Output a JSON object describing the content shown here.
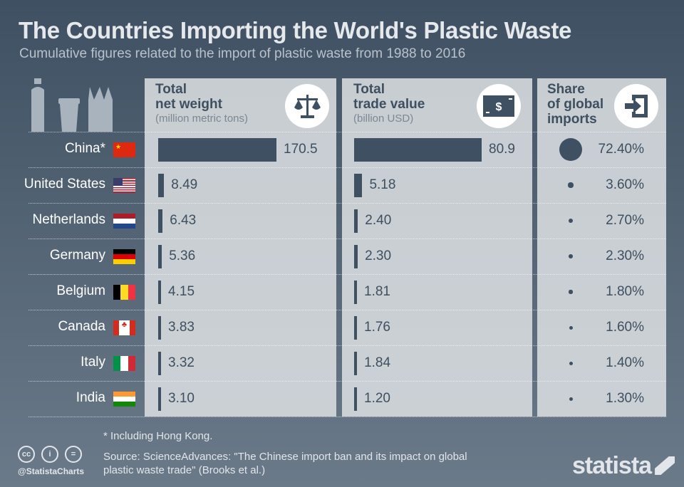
{
  "title": "The Countries Importing the World's Plastic Waste",
  "subtitle": "Cumulative figures related to the import of plastic waste from 1988 to 2016",
  "columns": {
    "weight": {
      "line1": "Total",
      "line2": "net weight",
      "unit": "(million metric tons)",
      "icon": "scale-icon"
    },
    "value": {
      "line1": "Total",
      "line2": "trade value",
      "unit": "(billion USD)",
      "icon": "dollar-bill-icon"
    },
    "share": {
      "line1": "Share",
      "line2": "of global",
      "line3": "imports",
      "icon": "import-icon"
    }
  },
  "chart_data": {
    "type": "bar",
    "title": "The Countries Importing the World's Plastic Waste",
    "categories": [
      "China*",
      "United States",
      "Netherlands",
      "Germany",
      "Belgium",
      "Canada",
      "Italy",
      "India"
    ],
    "series": [
      {
        "name": "Total net weight (million metric tons)",
        "values": [
          170.5,
          8.49,
          6.43,
          5.36,
          4.15,
          3.83,
          3.32,
          3.1
        ],
        "labels": [
          "170.5",
          "8.49",
          "6.43",
          "5.36",
          "4.15",
          "3.83",
          "3.32",
          "3.10"
        ]
      },
      {
        "name": "Total trade value (billion USD)",
        "values": [
          80.9,
          5.18,
          2.4,
          2.3,
          1.81,
          1.76,
          1.84,
          1.2
        ],
        "labels": [
          "80.9",
          "5.18",
          "2.40",
          "2.30",
          "1.81",
          "1.76",
          "1.84",
          "1.20"
        ]
      },
      {
        "name": "Share of global imports",
        "values": [
          72.4,
          3.6,
          2.7,
          2.3,
          1.8,
          1.6,
          1.4,
          1.3
        ],
        "labels": [
          "72.40%",
          "3.60%",
          "2.70%",
          "2.30%",
          "1.80%",
          "1.60%",
          "1.40%",
          "1.30%"
        ]
      }
    ],
    "flags": [
      "china",
      "usa",
      "netherlands",
      "germany",
      "belgium",
      "canada",
      "italy",
      "india"
    ]
  },
  "footnote": "* Including Hong Kong.",
  "source": "Source: ScienceAdvances: \"The Chinese import ban and its impact on global plastic waste trade\" (Brooks et al.)",
  "handle": "@StatistaCharts",
  "logo": "statista",
  "colors": {
    "bar": "#3e5062",
    "panel": "#d6dade"
  }
}
